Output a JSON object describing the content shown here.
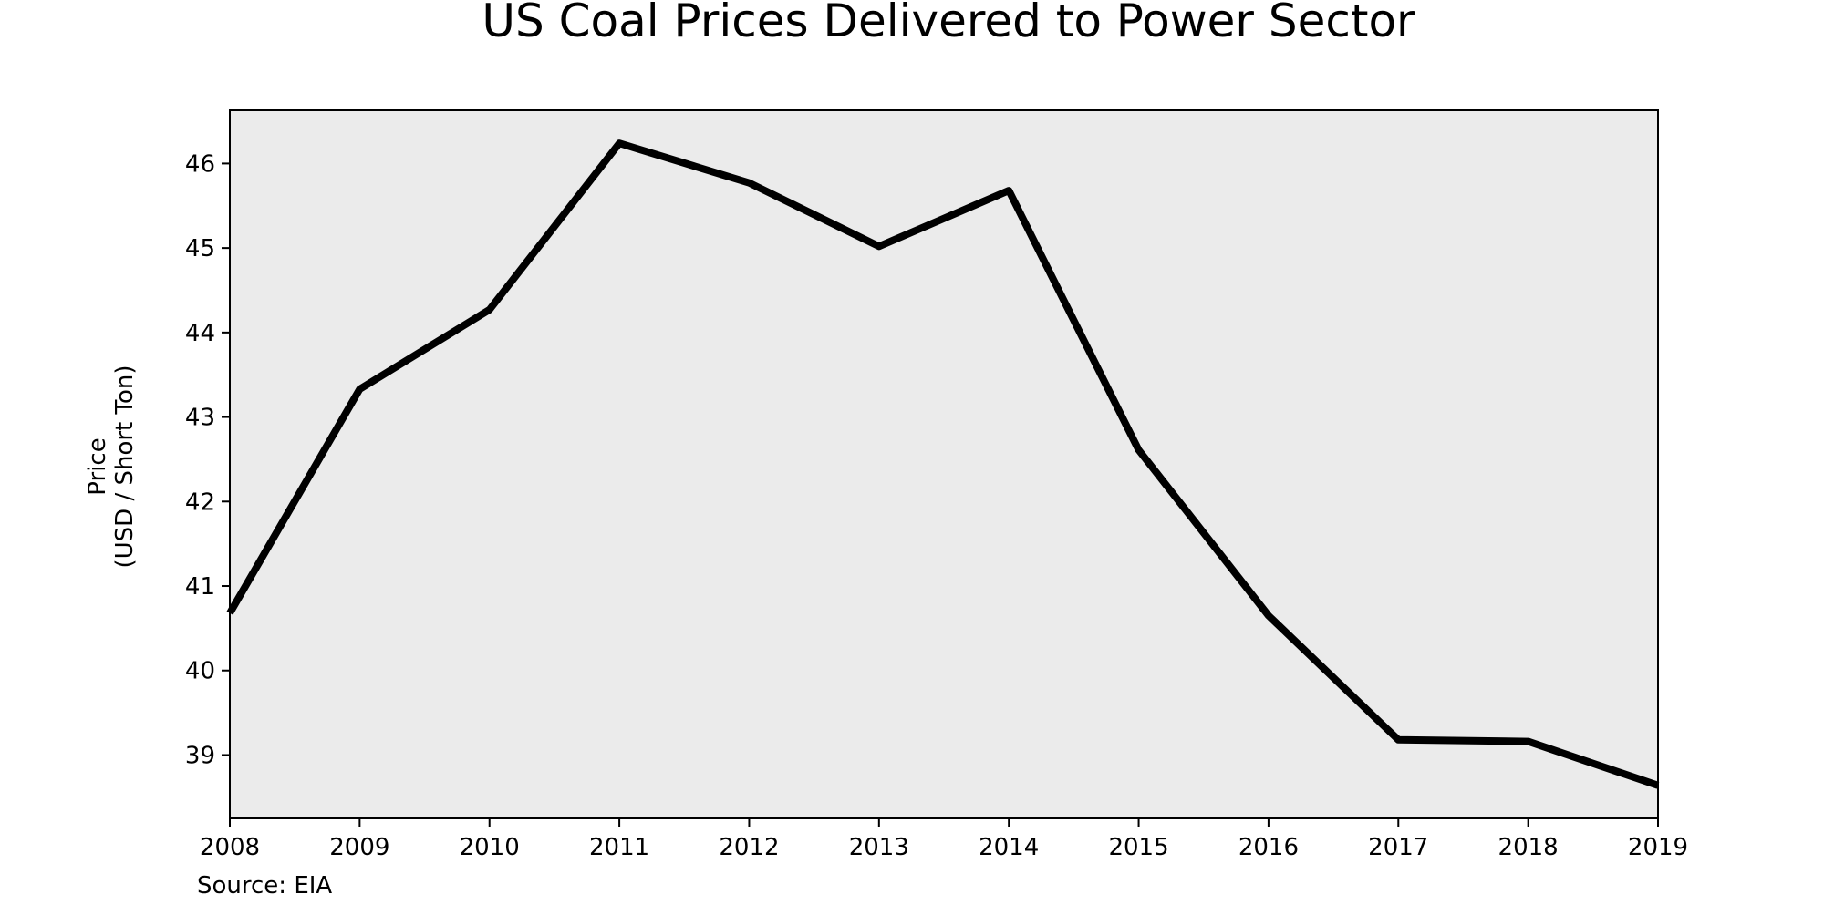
{
  "chart_data": {
    "type": "line",
    "title": "US Coal Prices Delivered to Power Sector",
    "xlabel": "",
    "ylabel_line1": "Price",
    "ylabel_line2": "(USD / Short Ton)",
    "source_note": "Source: EIA",
    "x": [
      2008,
      2009,
      2010,
      2011,
      2012,
      2013,
      2014,
      2015,
      2016,
      2017,
      2018,
      2019
    ],
    "x_tick_labels": [
      "2008",
      "2009",
      "2010",
      "2011",
      "2012",
      "2013",
      "2014",
      "2015",
      "2016",
      "2017",
      "2018",
      "2019"
    ],
    "y_ticks": [
      39,
      40,
      41,
      42,
      43,
      44,
      45,
      46
    ],
    "y_tick_labels": [
      "39",
      "40",
      "41",
      "42",
      "43",
      "44",
      "45",
      "46"
    ],
    "series": [
      {
        "values": [
          40.68,
          43.33,
          44.27,
          46.24,
          45.77,
          45.02,
          45.68,
          42.61,
          40.65,
          39.18,
          39.16,
          38.64
        ]
      }
    ],
    "xlim": [
      2008,
      2019
    ],
    "ylim": [
      38.25,
      46.63
    ],
    "grid": false,
    "legend": "none",
    "colors": {
      "plot_background": "#ebebeb",
      "line": "#000000",
      "axes": "#000000",
      "text": "#000000"
    }
  }
}
